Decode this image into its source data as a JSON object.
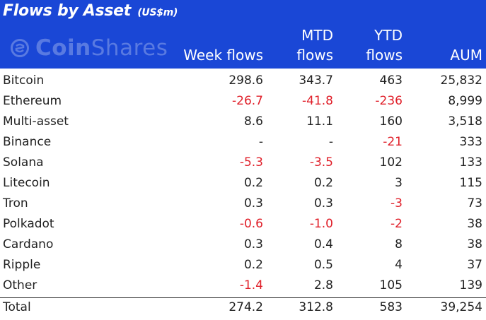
{
  "title": "Flows by Asset",
  "title_unit": "(US$m)",
  "logo_text_bold": "Coin",
  "logo_text_light": "Shares",
  "columns": {
    "week": "Week flows",
    "mtd_line1": "MTD",
    "mtd_line2": "flows",
    "ytd_line1": "YTD",
    "ytd_line2": "flows",
    "aum": "AUM"
  },
  "rows": [
    {
      "name": "Bitcoin",
      "week": "298.6",
      "mtd": "343.7",
      "ytd": "463",
      "aum": "25,832"
    },
    {
      "name": "Ethereum",
      "week": "-26.7",
      "mtd": "-41.8",
      "ytd": "-236",
      "aum": "8,999"
    },
    {
      "name": "Multi-asset",
      "week": "8.6",
      "mtd": "11.1",
      "ytd": "160",
      "aum": "3,518"
    },
    {
      "name": "Binance",
      "week": "-",
      "mtd": "-",
      "ytd": "-21",
      "aum": "333"
    },
    {
      "name": "Solana",
      "week": "-5.3",
      "mtd": "-3.5",
      "ytd": "102",
      "aum": "133"
    },
    {
      "name": "Litecoin",
      "week": "0.2",
      "mtd": "0.2",
      "ytd": "3",
      "aum": "115"
    },
    {
      "name": "Tron",
      "week": "0.3",
      "mtd": "0.3",
      "ytd": "-3",
      "aum": "73"
    },
    {
      "name": "Polkadot",
      "week": "-0.6",
      "mtd": "-1.0",
      "ytd": "-2",
      "aum": "38"
    },
    {
      "name": "Cardano",
      "week": "0.3",
      "mtd": "0.4",
      "ytd": "8",
      "aum": "38"
    },
    {
      "name": "Ripple",
      "week": "0.2",
      "mtd": "0.5",
      "ytd": "4",
      "aum": "37"
    },
    {
      "name": "Other",
      "week": "-1.4",
      "mtd": "2.8",
      "ytd": "105",
      "aum": "139"
    }
  ],
  "total": {
    "name": "Total",
    "week": "274.2",
    "mtd": "312.8",
    "ytd": "583",
    "aum": "39,254"
  },
  "colors": {
    "header": "#1a47d6",
    "negative": "#e0202a",
    "text": "#222222"
  }
}
